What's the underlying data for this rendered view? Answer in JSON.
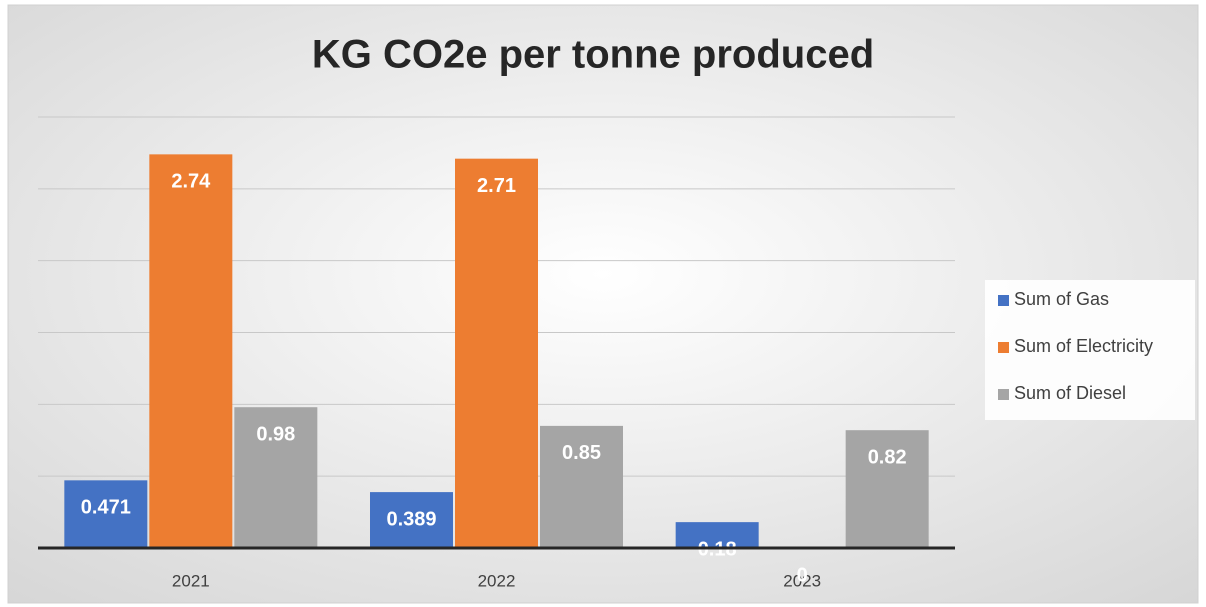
{
  "chart_data": {
    "type": "bar",
    "title": "KG CO2e per tonne produced",
    "categories": [
      "2021",
      "2022",
      "2023"
    ],
    "series": [
      {
        "name": "Sum of Gas",
        "color": "#4472c4",
        "values": [
          0.471,
          0.389,
          0.18
        ]
      },
      {
        "name": "Sum of Electricity",
        "color": "#ed7d31",
        "values": [
          2.74,
          2.71,
          0
        ]
      },
      {
        "name": "Sum of Diesel",
        "color": "#a5a5a5",
        "values": [
          0.98,
          0.85,
          0.82
        ]
      }
    ],
    "ylim": [
      0,
      3
    ],
    "yticks": [
      0,
      0.5,
      1,
      1.5,
      2,
      2.5,
      3
    ],
    "grid": true,
    "legend": "right"
  }
}
